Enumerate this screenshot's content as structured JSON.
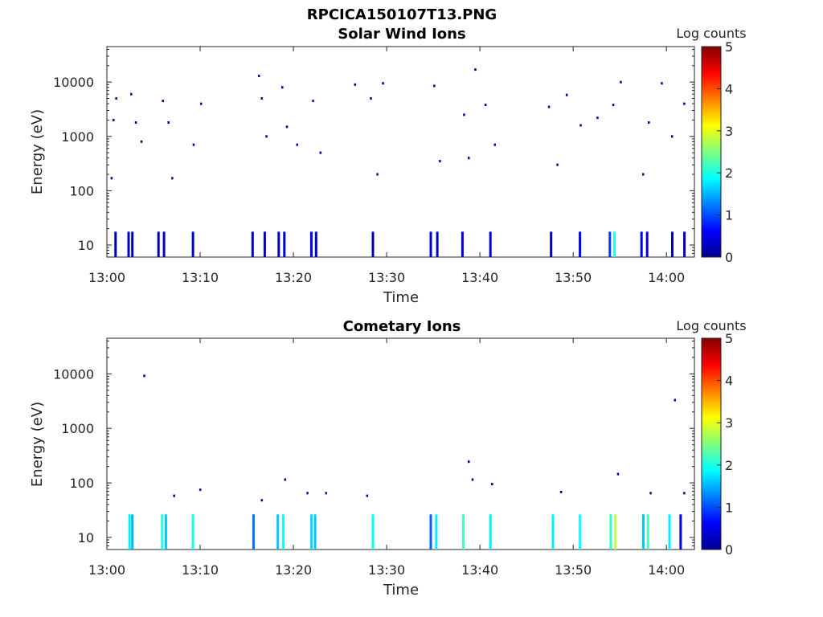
{
  "figure_title": "RPCICA150107T13.PNG",
  "colors": {
    "axis": "#262626",
    "colormap": "jet"
  },
  "chart_data": [
    {
      "type": "heatmap",
      "title": "Solar Wind Ions",
      "xlabel": "Time",
      "ylabel": "Energy (eV)",
      "y_scale": "log",
      "ylim": [
        6,
        45000
      ],
      "x_range": [
        "13:00",
        "14:03"
      ],
      "x_ticks": [
        "13:00",
        "13:10",
        "13:20",
        "13:30",
        "13:40",
        "13:50",
        "14:00"
      ],
      "y_ticks": [
        {
          "value": 10,
          "label": "10"
        },
        {
          "value": 100,
          "label": "100"
        },
        {
          "value": 1000,
          "label": "1000"
        },
        {
          "value": 10000,
          "label": "10000"
        }
      ],
      "colorbar": {
        "label": "Log counts",
        "range": [
          0,
          5
        ],
        "ticks": [
          "0",
          "1",
          "2",
          "3",
          "4",
          "5"
        ]
      },
      "cells": [
        {
          "t": 0.8,
          "e": 8,
          "v": 0.2
        },
        {
          "t": 2.2,
          "e": 8,
          "v": 0.3
        },
        {
          "t": 2.6,
          "e": 8,
          "v": 0.3
        },
        {
          "t": 5.4,
          "e": 8,
          "v": 0.2
        },
        {
          "t": 6.0,
          "e": 8,
          "v": 0.3
        },
        {
          "t": 9.1,
          "e": 8,
          "v": 0.3
        },
        {
          "t": 15.5,
          "e": 8,
          "v": 0.3
        },
        {
          "t": 16.8,
          "e": 8,
          "v": 0.3
        },
        {
          "t": 18.3,
          "e": 8,
          "v": 0.4
        },
        {
          "t": 18.9,
          "e": 8,
          "v": 0.4
        },
        {
          "t": 21.8,
          "e": 8,
          "v": 0.5
        },
        {
          "t": 22.3,
          "e": 8,
          "v": 0.4
        },
        {
          "t": 28.4,
          "e": 8,
          "v": 0.2
        },
        {
          "t": 34.6,
          "e": 8,
          "v": 0.4
        },
        {
          "t": 35.3,
          "e": 8,
          "v": 0.3
        },
        {
          "t": 38.0,
          "e": 8,
          "v": 0.4
        },
        {
          "t": 41.0,
          "e": 8,
          "v": 0.4
        },
        {
          "t": 47.5,
          "e": 8,
          "v": 0.2
        },
        {
          "t": 50.6,
          "e": 8,
          "v": 0.6
        },
        {
          "t": 53.8,
          "e": 8,
          "v": 0.9
        },
        {
          "t": 54.3,
          "e": 8,
          "v": 2.0
        },
        {
          "t": 57.2,
          "e": 8,
          "v": 0.5
        },
        {
          "t": 57.8,
          "e": 8,
          "v": 0.4
        },
        {
          "t": 60.5,
          "e": 8,
          "v": 0.2
        },
        {
          "t": 61.8,
          "e": 8,
          "v": 0.3
        },
        {
          "t": 0.4,
          "e": 170,
          "v": 0.1
        },
        {
          "t": 0.6,
          "e": 2000,
          "v": 0.1
        },
        {
          "t": 0.9,
          "e": 5000,
          "v": 0.1
        },
        {
          "t": 2.5,
          "e": 6000,
          "v": 0.1
        },
        {
          "t": 3.0,
          "e": 1800,
          "v": 0.1
        },
        {
          "t": 3.6,
          "e": 800,
          "v": 0.1
        },
        {
          "t": 5.9,
          "e": 4500,
          "v": 0.1
        },
        {
          "t": 6.5,
          "e": 1800,
          "v": 0.1
        },
        {
          "t": 6.9,
          "e": 170,
          "v": 0.1
        },
        {
          "t": 9.2,
          "e": 700,
          "v": 0.1
        },
        {
          "t": 10.0,
          "e": 4000,
          "v": 0.1
        },
        {
          "t": 16.2,
          "e": 13000,
          "v": 0.1
        },
        {
          "t": 16.5,
          "e": 5000,
          "v": 0.1
        },
        {
          "t": 17.0,
          "e": 1000,
          "v": 0.1
        },
        {
          "t": 18.7,
          "e": 8000,
          "v": 0.1
        },
        {
          "t": 19.2,
          "e": 1500,
          "v": 0.1
        },
        {
          "t": 20.3,
          "e": 700,
          "v": 0.1
        },
        {
          "t": 22.0,
          "e": 4500,
          "v": 0.1
        },
        {
          "t": 22.8,
          "e": 500,
          "v": 0.1
        },
        {
          "t": 26.5,
          "e": 9000,
          "v": 0.1
        },
        {
          "t": 28.2,
          "e": 5000,
          "v": 0.1
        },
        {
          "t": 28.9,
          "e": 200,
          "v": 0.1
        },
        {
          "t": 29.5,
          "e": 9500,
          "v": 0.1
        },
        {
          "t": 35.0,
          "e": 8500,
          "v": 0.1
        },
        {
          "t": 35.6,
          "e": 350,
          "v": 0.1
        },
        {
          "t": 38.2,
          "e": 2500,
          "v": 0.1
        },
        {
          "t": 38.7,
          "e": 400,
          "v": 0.1
        },
        {
          "t": 39.4,
          "e": 17000,
          "v": 0.1
        },
        {
          "t": 40.5,
          "e": 3800,
          "v": 0.1
        },
        {
          "t": 41.5,
          "e": 700,
          "v": 0.1
        },
        {
          "t": 47.3,
          "e": 3500,
          "v": 0.1
        },
        {
          "t": 48.2,
          "e": 300,
          "v": 0.1
        },
        {
          "t": 49.2,
          "e": 5800,
          "v": 0.1
        },
        {
          "t": 50.7,
          "e": 1600,
          "v": 0.1
        },
        {
          "t": 52.5,
          "e": 2200,
          "v": 0.1
        },
        {
          "t": 54.2,
          "e": 3800,
          "v": 0.1
        },
        {
          "t": 55.0,
          "e": 10000,
          "v": 0.1
        },
        {
          "t": 57.4,
          "e": 200,
          "v": 0.1
        },
        {
          "t": 58.0,
          "e": 1800,
          "v": 0.1
        },
        {
          "t": 59.4,
          "e": 9500,
          "v": 0.1
        },
        {
          "t": 60.5,
          "e": 1000,
          "v": 0.1
        },
        {
          "t": 61.8,
          "e": 4000,
          "v": 0.1
        }
      ]
    },
    {
      "type": "heatmap",
      "title": "Cometary Ions",
      "xlabel": "Time",
      "ylabel": "Energy (eV)",
      "y_scale": "log",
      "ylim": [
        6,
        45000
      ],
      "x_range": [
        "13:00",
        "14:03"
      ],
      "x_ticks": [
        "13:00",
        "13:10",
        "13:20",
        "13:30",
        "13:40",
        "13:50",
        "14:00"
      ],
      "y_ticks": [
        {
          "value": 10,
          "label": "10"
        },
        {
          "value": 100,
          "label": "100"
        },
        {
          "value": 1000,
          "label": "1000"
        },
        {
          "value": 10000,
          "label": "10000"
        }
      ],
      "colorbar": {
        "label": "Log counts",
        "range": [
          0,
          5
        ],
        "ticks": [
          "0",
          "1",
          "2",
          "3",
          "4",
          "5"
        ]
      },
      "cells": [
        {
          "t": 2.3,
          "e": 12,
          "v": 1.8
        },
        {
          "t": 2.6,
          "e": 12,
          "v": 1.5
        },
        {
          "t": 5.8,
          "e": 12,
          "v": 2.0
        },
        {
          "t": 6.2,
          "e": 12,
          "v": 1.6
        },
        {
          "t": 9.1,
          "e": 12,
          "v": 2.0
        },
        {
          "t": 15.6,
          "e": 12,
          "v": 1.2
        },
        {
          "t": 18.2,
          "e": 12,
          "v": 1.6
        },
        {
          "t": 18.8,
          "e": 12,
          "v": 1.9
        },
        {
          "t": 21.8,
          "e": 12,
          "v": 1.7
        },
        {
          "t": 22.2,
          "e": 12,
          "v": 1.6
        },
        {
          "t": 28.4,
          "e": 12,
          "v": 1.9
        },
        {
          "t": 34.6,
          "e": 12,
          "v": 1.1
        },
        {
          "t": 35.2,
          "e": 12,
          "v": 1.8
        },
        {
          "t": 38.1,
          "e": 12,
          "v": 2.2
        },
        {
          "t": 41.0,
          "e": 12,
          "v": 1.8
        },
        {
          "t": 47.7,
          "e": 12,
          "v": 1.8
        },
        {
          "t": 50.6,
          "e": 12,
          "v": 1.9
        },
        {
          "t": 53.9,
          "e": 12,
          "v": 2.1
        },
        {
          "t": 54.4,
          "e": 12,
          "v": 2.8
        },
        {
          "t": 57.4,
          "e": 12,
          "v": 1.6
        },
        {
          "t": 57.9,
          "e": 12,
          "v": 2.2
        },
        {
          "t": 60.2,
          "e": 12,
          "v": 1.8
        },
        {
          "t": 61.4,
          "e": 12,
          "v": 0.5
        },
        {
          "t": 3.9,
          "e": 9200,
          "v": 0.1
        },
        {
          "t": 7.1,
          "e": 58,
          "v": 0.1
        },
        {
          "t": 9.9,
          "e": 75,
          "v": 0.1
        },
        {
          "t": 16.5,
          "e": 48,
          "v": 0.1
        },
        {
          "t": 19.0,
          "e": 115,
          "v": 0.1
        },
        {
          "t": 21.4,
          "e": 65,
          "v": 0.1
        },
        {
          "t": 23.4,
          "e": 65,
          "v": 0.1
        },
        {
          "t": 27.8,
          "e": 58,
          "v": 0.1
        },
        {
          "t": 38.7,
          "e": 245,
          "v": 0.1
        },
        {
          "t": 39.1,
          "e": 115,
          "v": 0.1
        },
        {
          "t": 41.2,
          "e": 95,
          "v": 0.1
        },
        {
          "t": 48.6,
          "e": 68,
          "v": 0.1
        },
        {
          "t": 54.7,
          "e": 145,
          "v": 0.1
        },
        {
          "t": 58.2,
          "e": 65,
          "v": 0.1
        },
        {
          "t": 60.8,
          "e": 3300,
          "v": 0.1
        },
        {
          "t": 61.8,
          "e": 65,
          "v": 0.1
        }
      ]
    }
  ]
}
